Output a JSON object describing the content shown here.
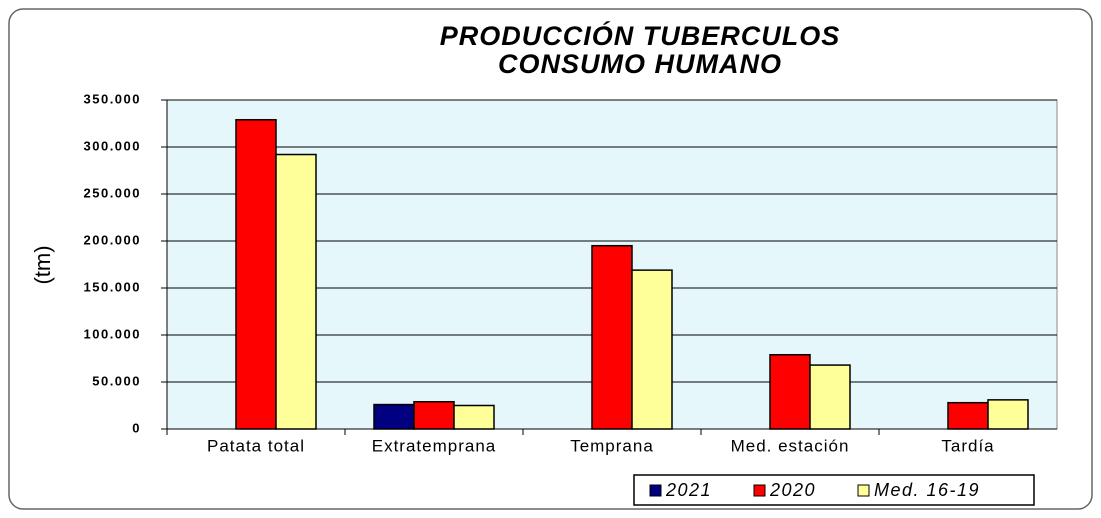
{
  "chart_data": {
    "type": "bar",
    "title": "PRODUCCIÓN TUBERCULOS CONSUMO HUMANO",
    "y_label": "(tm)",
    "categories": [
      "Patata total",
      "Extratemprana",
      "Temprana",
      "Med. estación",
      "Tardía"
    ],
    "series": [
      {
        "name": "2021",
        "color": "#000080",
        "values": [
          null,
          26000,
          null,
          null,
          null
        ]
      },
      {
        "name": "2020",
        "color": "#ff0000",
        "values": [
          329000,
          29000,
          195000,
          79000,
          28000
        ]
      },
      {
        "name": "Med. 16-19",
        "color": "#ffff99",
        "values": [
          292000,
          25000,
          169000,
          68000,
          31000
        ]
      }
    ],
    "ylim": [
      0,
      350000
    ],
    "yticks": [
      0,
      {
        "value": 50000,
        "label": "50.000"
      },
      {
        "value": 100000,
        "label": "100.000"
      },
      {
        "value": 150000,
        "label": "150.000"
      },
      {
        "value": 200000,
        "label": "200.000"
      },
      {
        "value": 250000,
        "label": "250.000"
      },
      {
        "value": 300000,
        "label": "300.000"
      },
      {
        "value": 350000,
        "label": "350.000"
      }
    ],
    "grid": true,
    "legend": "lower right"
  }
}
